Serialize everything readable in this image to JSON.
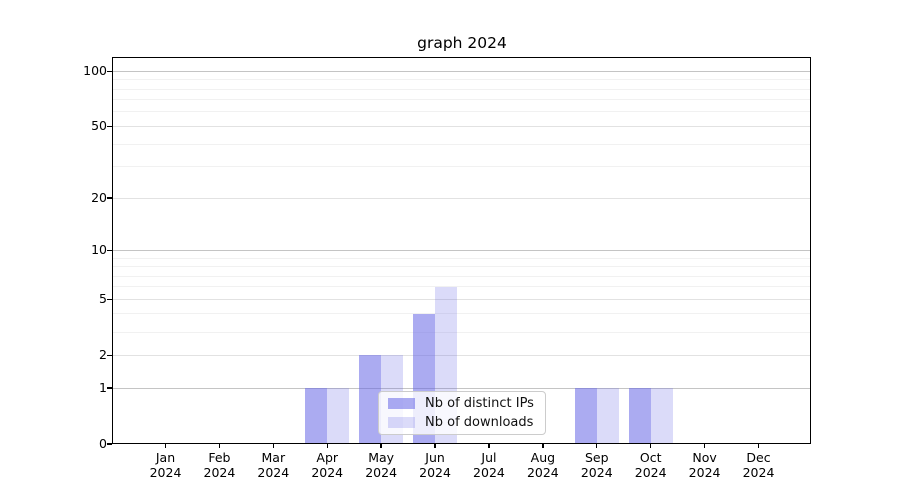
{
  "title": "graph 2024",
  "chart_data": {
    "type": "bar",
    "title": "graph 2024",
    "categories": [
      "Jan\n2024",
      "Feb\n2024",
      "Mar\n2024",
      "Apr\n2024",
      "May\n2024",
      "Jun\n2024",
      "Jul\n2024",
      "Aug\n2024",
      "Sep\n2024",
      "Oct\n2024",
      "Nov\n2024",
      "Dec\n2024"
    ],
    "series": [
      {
        "name": "Nb of distinct IPs",
        "color": "rgba(100,100,230,0.54)",
        "values": [
          0,
          0,
          0,
          1,
          2,
          4,
          0,
          0,
          1,
          1,
          0,
          0
        ]
      },
      {
        "name": "Nb of downloads",
        "color": "rgba(100,100,230,0.23)",
        "values": [
          0,
          0,
          0,
          1,
          2,
          6,
          0,
          0,
          1,
          1,
          0,
          0
        ]
      }
    ],
    "xlabel": "",
    "ylabel": "",
    "yscale": "log1p",
    "ylim": [
      0,
      117
    ],
    "yticks": [
      0,
      1,
      2,
      5,
      10,
      20,
      50,
      100
    ],
    "gridlines": {
      "major": [
        1,
        10,
        100
      ],
      "mid": [
        2,
        5,
        20,
        50
      ],
      "minor": [
        3,
        4,
        6,
        7,
        8,
        9,
        30,
        40,
        60,
        70,
        80,
        90
      ]
    },
    "legend": {
      "position": "lower center",
      "visible": true
    },
    "colors": {
      "grid_major": "#c4c4c4",
      "grid_mid": "#e2e2e2",
      "grid_minor": "#f1f1f1",
      "axis": "#000000",
      "background": "#ffffff"
    }
  }
}
